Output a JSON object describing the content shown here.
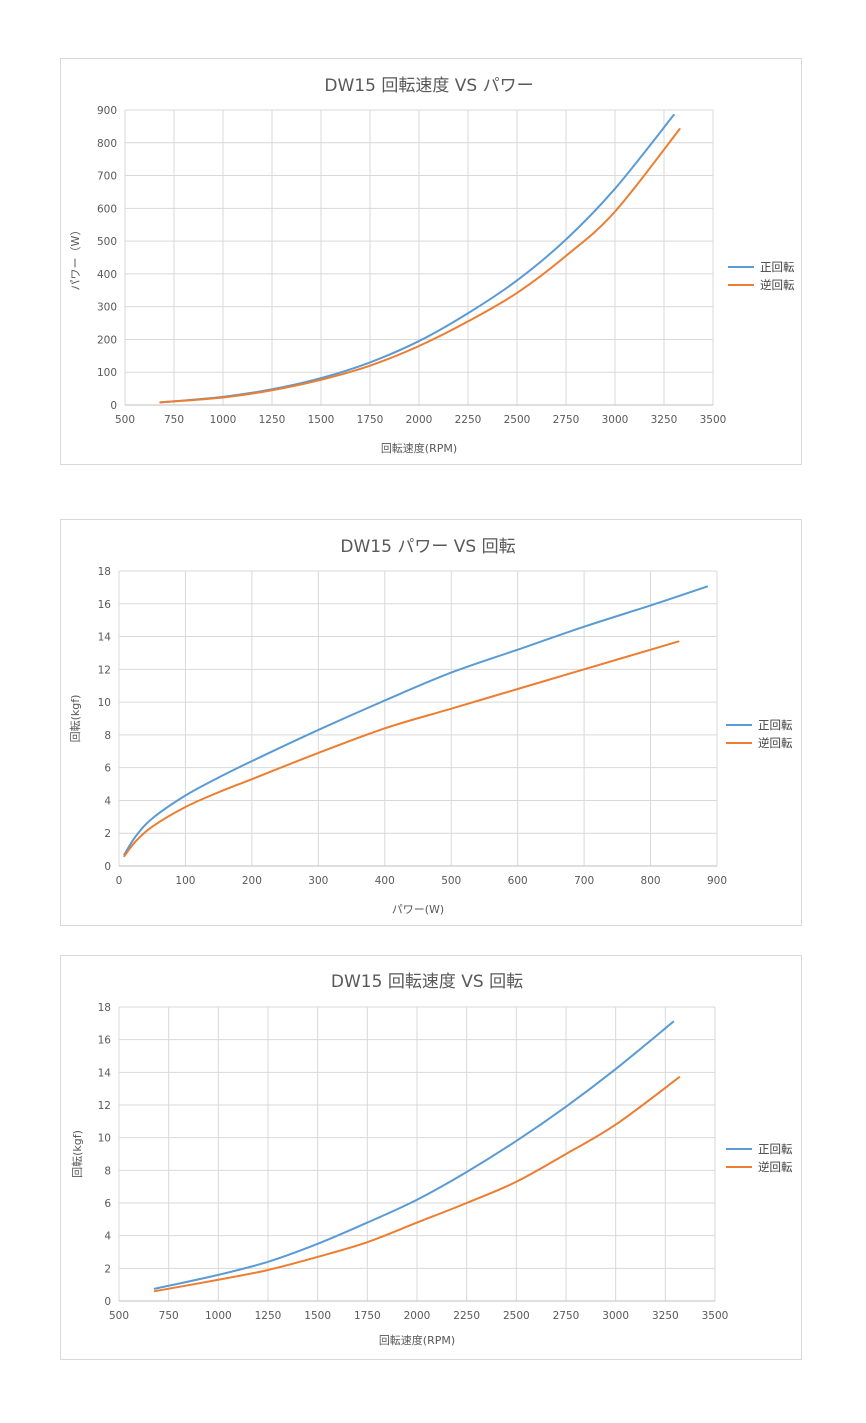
{
  "colors": {
    "forward": "#5B9BD5",
    "reverse": "#ED7D31"
  },
  "chart_data": [
    {
      "type": "line",
      "title": "DW15 回転速度 VS パワー",
      "xlabel": "回転速度(RPM)",
      "ylabel": "パワー（W）",
      "xlim": [
        500,
        3500
      ],
      "ylim": [
        0,
        900
      ],
      "xticks": [
        500,
        750,
        1000,
        1250,
        1500,
        1750,
        2000,
        2250,
        2500,
        2750,
        3000,
        3250,
        3500
      ],
      "yticks": [
        0,
        100,
        200,
        300,
        400,
        500,
        600,
        700,
        800,
        900
      ],
      "grid": true,
      "legend_position": "right",
      "series": [
        {
          "name": "正回転",
          "color": "#5B9BD5",
          "x": [
            680,
            1000,
            1250,
            1500,
            1750,
            2000,
            2250,
            2500,
            2750,
            3000,
            3300
          ],
          "y": [
            8,
            25,
            48,
            82,
            130,
            195,
            280,
            380,
            505,
            660,
            885
          ]
        },
        {
          "name": "逆回転",
          "color": "#ED7D31",
          "x": [
            680,
            1000,
            1250,
            1500,
            1750,
            2000,
            2250,
            2500,
            2750,
            3000,
            3330
          ],
          "y": [
            8,
            23,
            45,
            77,
            120,
            180,
            255,
            342,
            455,
            590,
            842
          ]
        }
      ]
    },
    {
      "type": "line",
      "title": "DW15 パワー VS 回転",
      "xlabel": "パワー(W)",
      "ylabel": "回転(kgf)",
      "xlim": [
        0,
        900
      ],
      "ylim": [
        0,
        18
      ],
      "xticks": [
        0,
        100,
        200,
        300,
        400,
        500,
        600,
        700,
        800,
        900
      ],
      "yticks": [
        0,
        2,
        4,
        6,
        8,
        10,
        12,
        14,
        16,
        18
      ],
      "grid": true,
      "legend_position": "right",
      "series": [
        {
          "name": "正回転",
          "color": "#5B9BD5",
          "x": [
            8,
            25,
            50,
            100,
            150,
            200,
            300,
            400,
            500,
            600,
            700,
            800,
            885
          ],
          "y": [
            0.7,
            1.8,
            2.9,
            4.3,
            5.4,
            6.4,
            8.3,
            10.1,
            11.8,
            13.2,
            14.6,
            15.9,
            17.05
          ]
        },
        {
          "name": "逆回転",
          "color": "#ED7D31",
          "x": [
            8,
            25,
            50,
            100,
            150,
            200,
            300,
            400,
            500,
            600,
            700,
            842
          ],
          "y": [
            0.6,
            1.5,
            2.4,
            3.6,
            4.5,
            5.3,
            6.9,
            8.4,
            9.6,
            10.8,
            12.0,
            13.7
          ]
        }
      ]
    },
    {
      "type": "line",
      "title": "DW15 回転速度 VS 回転",
      "xlabel": "回転速度(RPM)",
      "ylabel": "回転(kgf)",
      "xlim": [
        500,
        3500
      ],
      "ylim": [
        0,
        18
      ],
      "xticks": [
        500,
        750,
        1000,
        1250,
        1500,
        1750,
        2000,
        2250,
        2500,
        2750,
        3000,
        3250,
        3500
      ],
      "yticks": [
        0,
        2,
        4,
        6,
        8,
        10,
        12,
        14,
        16,
        18
      ],
      "grid": true,
      "legend_position": "right",
      "series": [
        {
          "name": "正回転",
          "color": "#5B9BD5",
          "x": [
            680,
            1000,
            1250,
            1500,
            1750,
            2000,
            2250,
            2500,
            2750,
            3000,
            3290
          ],
          "y": [
            0.75,
            1.6,
            2.4,
            3.5,
            4.8,
            6.2,
            7.9,
            9.8,
            11.9,
            14.2,
            17.1
          ]
        },
        {
          "name": "逆回転",
          "color": "#ED7D31",
          "x": [
            680,
            1000,
            1250,
            1500,
            1750,
            2000,
            2250,
            2500,
            2750,
            3000,
            3320
          ],
          "y": [
            0.6,
            1.3,
            1.9,
            2.7,
            3.6,
            4.8,
            6.0,
            7.3,
            9.0,
            10.8,
            13.7
          ]
        }
      ]
    }
  ]
}
